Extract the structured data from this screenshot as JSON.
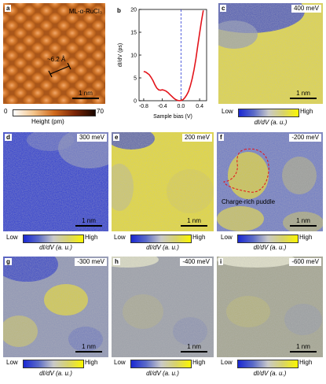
{
  "panel_a": {
    "letter": "a",
    "title": "ML-α-RuCl₃",
    "distance": "~6.2 Å",
    "scalebar": "1 nm",
    "colorbar": {
      "min": "0",
      "max": "70",
      "label": "Height (pm)"
    }
  },
  "panel_b": {
    "letter": "b"
  },
  "chart_data": {
    "type": "line",
    "xlabel": "Sample bias (V)",
    "ylabel": "dI/dV (ps)",
    "xlim": [
      -0.9,
      0.55
    ],
    "ylim": [
      0,
      20
    ],
    "xticks": [
      "-0.8",
      "-0.4",
      "0.0",
      "0.4"
    ],
    "yticks": [
      "0",
      "5",
      "10",
      "15",
      "20"
    ],
    "xtick_values": [
      -0.8,
      -0.4,
      0.0,
      0.4
    ],
    "ytick_values": [
      0,
      5,
      10,
      15,
      20
    ],
    "vline_x": 0.0,
    "series": [
      {
        "x": [
          -0.8,
          -0.76,
          -0.72,
          -0.68,
          -0.64,
          -0.6,
          -0.56,
          -0.52,
          -0.48,
          -0.44,
          -0.4,
          -0.36,
          -0.32,
          -0.28,
          -0.24,
          -0.2,
          -0.16,
          -0.12,
          -0.08,
          -0.04,
          0.0,
          0.04,
          0.08,
          0.12,
          0.16,
          0.2,
          0.24,
          0.28,
          0.32,
          0.36,
          0.4,
          0.44,
          0.48
        ],
        "y": [
          6.4,
          6.3,
          6.0,
          5.7,
          5.1,
          4.4,
          3.5,
          2.8,
          2.4,
          2.3,
          2.4,
          2.3,
          2.1,
          1.8,
          1.4,
          1.0,
          0.6,
          0.3,
          0.1,
          0.0,
          0.05,
          0.2,
          0.6,
          1.2,
          2.0,
          3.2,
          4.8,
          6.8,
          9.2,
          12.0,
          14.8,
          17.5,
          19.8
        ],
        "color": "#e3141b"
      }
    ]
  },
  "maps": {
    "c": {
      "letter": "c",
      "energy": "400 meV",
      "scalebar": "1 nm"
    },
    "d": {
      "letter": "d",
      "energy": "300 meV",
      "scalebar": "1 nm"
    },
    "e": {
      "letter": "e",
      "energy": "200 meV",
      "scalebar": "1 nm"
    },
    "f": {
      "letter": "f",
      "energy": "-200 meV",
      "scalebar": "1 nm",
      "annotation": "Charge-rich puddle"
    },
    "g": {
      "letter": "g",
      "energy": "-300 meV",
      "scalebar": "1 nm"
    },
    "h": {
      "letter": "h",
      "energy": "-400 meV",
      "scalebar": "1 nm"
    },
    "i": {
      "letter": "i",
      "energy": "-600 meV",
      "scalebar": "1 nm"
    }
  },
  "colorbar": {
    "low": "Low",
    "high": "High",
    "label": "dI/dV (a. u.)"
  },
  "colors": {
    "map_blue": "#1a28d2",
    "map_yellow": "#f5f000",
    "curve_red": "#e3141b",
    "vline_blue": "#2a3ad6"
  }
}
